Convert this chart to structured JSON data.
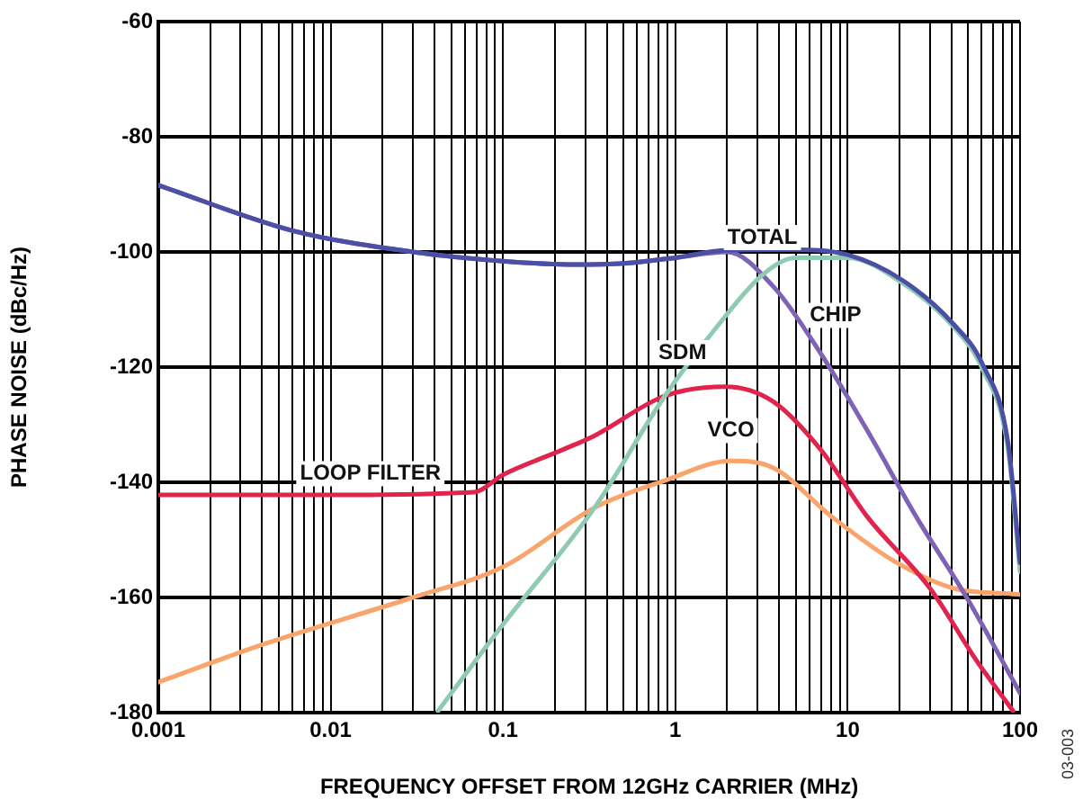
{
  "chart_data": {
    "type": "line",
    "xlabel": "FREQUENCY OFFSET FROM 12GHz CARRIER (MHz)",
    "ylabel": "PHASE NOISE (dBc/Hz)",
    "log": "x",
    "grid": true,
    "legend": false,
    "marker": "none",
    "line_style": "solid",
    "xlim": [
      0.001,
      100
    ],
    "ylim": [
      -180,
      -60
    ],
    "xticks": [
      0.001,
      {
        "value": 0.002,
        "label": null
      },
      {
        "value": 0.003,
        "label": null
      },
      {
        "value": 0.004,
        "label": null
      },
      {
        "value": 0.005,
        "label": null
      },
      {
        "value": 0.006,
        "label": null
      },
      {
        "value": 0.007,
        "label": null
      },
      {
        "value": 0.008,
        "label": null
      },
      {
        "value": 0.009,
        "label": null
      },
      0.01,
      {
        "value": 0.02,
        "label": null
      },
      {
        "value": 0.03,
        "label": null
      },
      {
        "value": 0.04,
        "label": null
      },
      {
        "value": 0.05,
        "label": null
      },
      {
        "value": 0.06,
        "label": null
      },
      {
        "value": 0.07,
        "label": null
      },
      {
        "value": 0.08,
        "label": null
      },
      {
        "value": 0.09,
        "label": null
      },
      0.1,
      {
        "value": 0.2,
        "label": null
      },
      {
        "value": 0.3,
        "label": null
      },
      {
        "value": 0.4,
        "label": null
      },
      {
        "value": 0.5,
        "label": null
      },
      {
        "value": 0.6,
        "label": null
      },
      {
        "value": 0.7,
        "label": null
      },
      {
        "value": 0.8,
        "label": null
      },
      {
        "value": 0.9,
        "label": null
      },
      1,
      {
        "value": 2,
        "label": null
      },
      {
        "value": 3,
        "label": null
      },
      {
        "value": 4,
        "label": null
      },
      {
        "value": 5,
        "label": null
      },
      {
        "value": 6,
        "label": null
      },
      {
        "value": 7,
        "label": null
      },
      {
        "value": 8,
        "label": null
      },
      {
        "value": 9,
        "label": null
      },
      10,
      {
        "value": 20,
        "label": null
      },
      {
        "value": 30,
        "label": null
      },
      {
        "value": 40,
        "label": null
      },
      {
        "value": 50,
        "label": null
      },
      {
        "value": 60,
        "label": null
      },
      {
        "value": 70,
        "label": null
      },
      {
        "value": 80,
        "label": null
      },
      {
        "value": 90,
        "label": null
      },
      100
    ],
    "yticks": [
      -180,
      -160,
      -140,
      -120,
      -100,
      -80,
      -60
    ],
    "annotations": [
      "03-003"
    ],
    "series": [
      {
        "name": "TOTAL",
        "color": "#4b4fa6",
        "x": [
          0.001,
          0.006,
          0.03,
          0.1,
          0.26,
          0.5,
          1,
          2,
          4.7,
          10,
          21,
          41,
          61,
          85,
          100
        ],
        "values": [
          -88.4,
          -96.3,
          -100,
          -101.6,
          -102.2,
          -102,
          -101,
          -99.7,
          -99.6,
          -100.5,
          -105,
          -112.5,
          -119.7,
          -133,
          -154
        ]
      },
      {
        "name": "SDM",
        "color": "#8fcbb0",
        "x": [
          0.042,
          0.1,
          0.34,
          0.87,
          1.7,
          3.2,
          5,
          10,
          21,
          41,
          61,
          85,
          100
        ],
        "values": [
          -179.7,
          -164.7,
          -144.4,
          -125,
          -113.4,
          -104,
          -101,
          -101,
          -105.5,
          -113,
          -120.5,
          -134,
          -155.5
        ]
      },
      {
        "name": "CHIP",
        "color": "#7e62b5",
        "x": [
          0.001,
          0.006,
          0.03,
          0.1,
          0.26,
          0.5,
          1,
          2,
          3.7,
          7,
          13,
          25,
          49,
          100
        ],
        "values": [
          -88.4,
          -96.3,
          -100,
          -101.6,
          -102.2,
          -102,
          -101,
          -100,
          -106,
          -117.7,
          -131,
          -146,
          -160,
          -176.6
        ]
      },
      {
        "name": "LOOP FILTER",
        "color": "#e0244c",
        "x": [
          0.001,
          0.01,
          0.068,
          0.1,
          0.22,
          0.34,
          0.87,
          1.95,
          3.7,
          7,
          13,
          30,
          56,
          91
        ],
        "values": [
          -142.2,
          -142.2,
          -141.7,
          -138.7,
          -134.4,
          -131.9,
          -125,
          -123.4,
          -126,
          -134.4,
          -146,
          -158.4,
          -171,
          -179.7
        ]
      },
      {
        "name": "VCO",
        "color": "#f9a46a",
        "x": [
          0.001,
          0.0042,
          0.03,
          0.1,
          0.34,
          0.87,
          2.1,
          3.7,
          8.1,
          18.6,
          41,
          91,
          100
        ],
        "values": [
          -174.7,
          -168,
          -160,
          -154.7,
          -144.4,
          -139.7,
          -136.3,
          -137.5,
          -146,
          -153.7,
          -158.4,
          -159.4,
          -159.5
        ]
      }
    ]
  }
}
